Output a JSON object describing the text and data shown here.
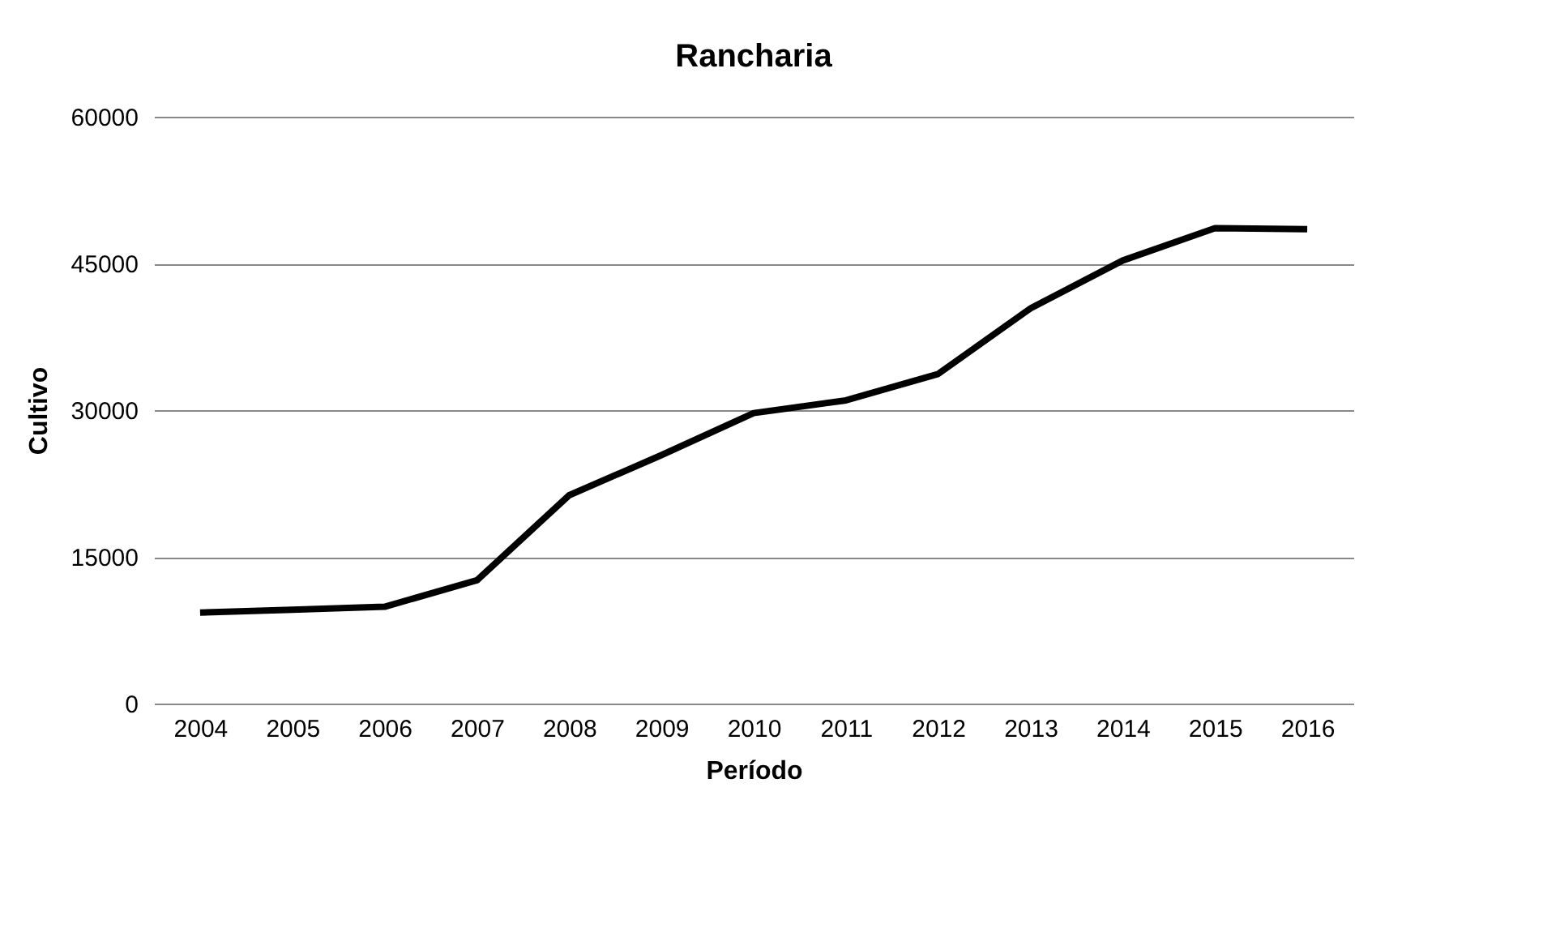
{
  "chart_data": {
    "type": "line",
    "title": "Rancharia",
    "xlabel": "Período",
    "ylabel": "Cultivo",
    "categories": [
      "2004",
      "2005",
      "2006",
      "2007",
      "2008",
      "2009",
      "2010",
      "2011",
      "2012",
      "2013",
      "2014",
      "2015",
      "2016"
    ],
    "series": [
      {
        "color": "#000000",
        "values": [
          9300,
          9600,
          9900,
          12600,
          21300,
          25400,
          29700,
          31000,
          33700,
          40400,
          45300,
          48600,
          48500
        ]
      }
    ],
    "ylim": [
      0,
      60000
    ],
    "yticks": [
      0,
      15000,
      30000,
      45000,
      60000
    ],
    "grid": "y",
    "marker": "none",
    "line_style": "solid"
  }
}
